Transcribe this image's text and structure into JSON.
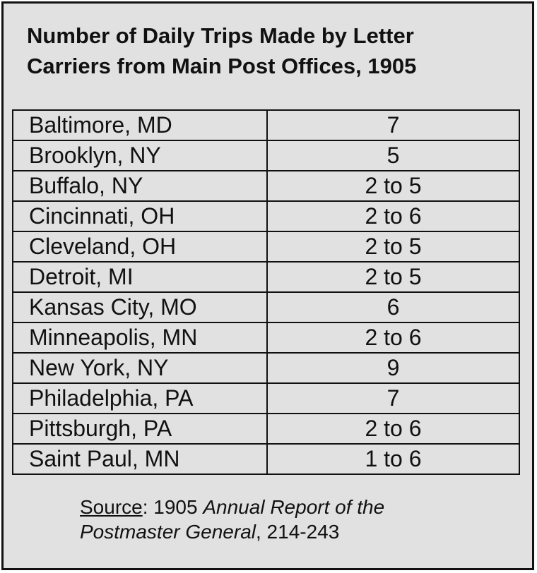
{
  "header": {
    "title_lines": [
      "Number of Daily Trips Made by Letter",
      "Carriers from Main Post Offices, 1905"
    ]
  },
  "table": {
    "rows": [
      [
        "Baltimore, MD",
        "7"
      ],
      [
        "Brooklyn, NY",
        "5"
      ],
      [
        "Buffalo, NY",
        "2 to 5"
      ],
      [
        "Cincinnati, OH",
        "2 to 6"
      ],
      [
        "Cleveland, OH",
        "2 to 5"
      ],
      [
        "Detroit, MI",
        "2 to 5"
      ],
      [
        "Kansas City, MO",
        "6"
      ],
      [
        "Minneapolis, MN",
        "2 to 6"
      ],
      [
        "New York, NY",
        "9"
      ],
      [
        "Philadelphia, PA",
        "7"
      ],
      [
        "Pittsburgh, PA",
        "2 to 6"
      ],
      [
        "Saint Paul, MN",
        "1 to 6"
      ]
    ]
  },
  "source": {
    "label": "Source",
    "line1": ": 1905 ",
    "italic1": "Annual Report of the",
    "italic2": "Postmaster General",
    "line2": ", 214-243"
  }
}
